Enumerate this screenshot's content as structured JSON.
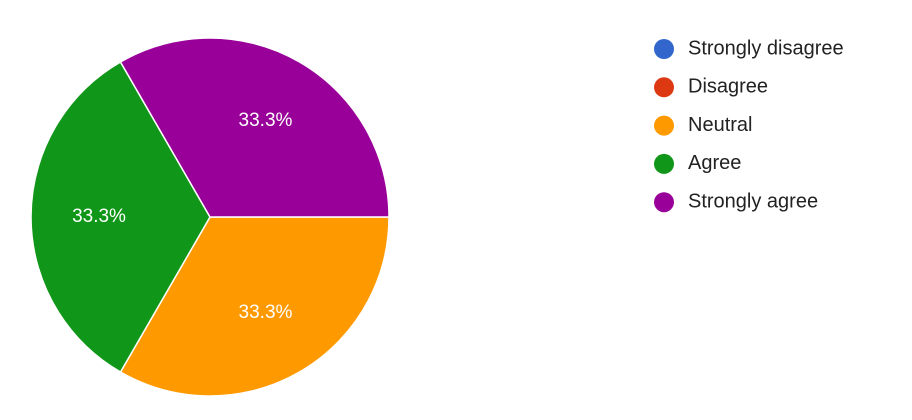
{
  "chart_data": {
    "type": "pie",
    "categories": [
      "Strongly disagree",
      "Disagree",
      "Neutral",
      "Agree",
      "Strongly agree"
    ],
    "values": [
      0,
      0,
      33.3,
      33.3,
      33.3
    ],
    "value_labels": [
      null,
      null,
      "33.3%",
      "33.3%",
      "33.3%"
    ],
    "colors": [
      "#3366cc",
      "#dc3912",
      "#ff9900",
      "#109618",
      "#990099"
    ],
    "legend": "right"
  }
}
